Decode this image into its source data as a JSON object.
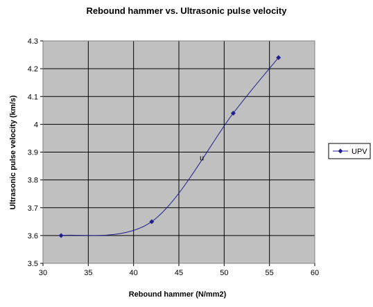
{
  "chart_data": {
    "type": "line",
    "title": "Rebound hammer vs. Ultrasonic pulse velocity",
    "xlabel": "Rebound hammer (N/mm2)",
    "ylabel": "Ultrasonic pulse velocity (km/s)",
    "xlim": [
      30,
      60
    ],
    "ylim": [
      3.5,
      4.3
    ],
    "x_ticks": [
      "30",
      "35",
      "40",
      "45",
      "50",
      "55",
      "60"
    ],
    "y_ticks": [
      "3.5",
      "3.6",
      "3.7",
      "3.8",
      "3.9",
      "4",
      "4.1",
      "4.2",
      "4.3"
    ],
    "grid": true,
    "smoothed": true,
    "legend_position": "right",
    "series": [
      {
        "name": "UPV",
        "color": "#1f1f8f",
        "x": [
          32,
          42,
          51,
          56
        ],
        "y": [
          3.6,
          3.65,
          4.04,
          4.24
        ]
      }
    ],
    "annotations": [
      {
        "text": "u",
        "x": 47.3,
        "y": 3.87
      }
    ],
    "plot_background": "#c0c0c0"
  }
}
